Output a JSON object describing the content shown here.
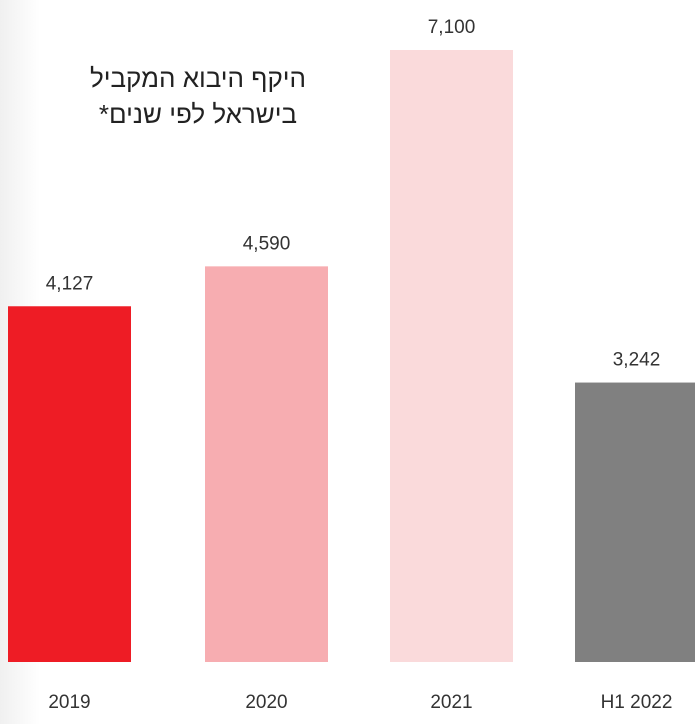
{
  "chart_data": {
    "type": "bar",
    "title": "היקף היבוא המקביל בישראל לפי שנים*",
    "categories": [
      "2019",
      "2020",
      "2021",
      "H1 2022"
    ],
    "values": [
      4127,
      4590,
      7100,
      3242
    ],
    "value_labels": [
      "4,127",
      "4,590",
      "7,100",
      "3,242"
    ],
    "colors": [
      "#ee1c25",
      "#f7adb1",
      "#fadadb",
      "#808080"
    ]
  }
}
